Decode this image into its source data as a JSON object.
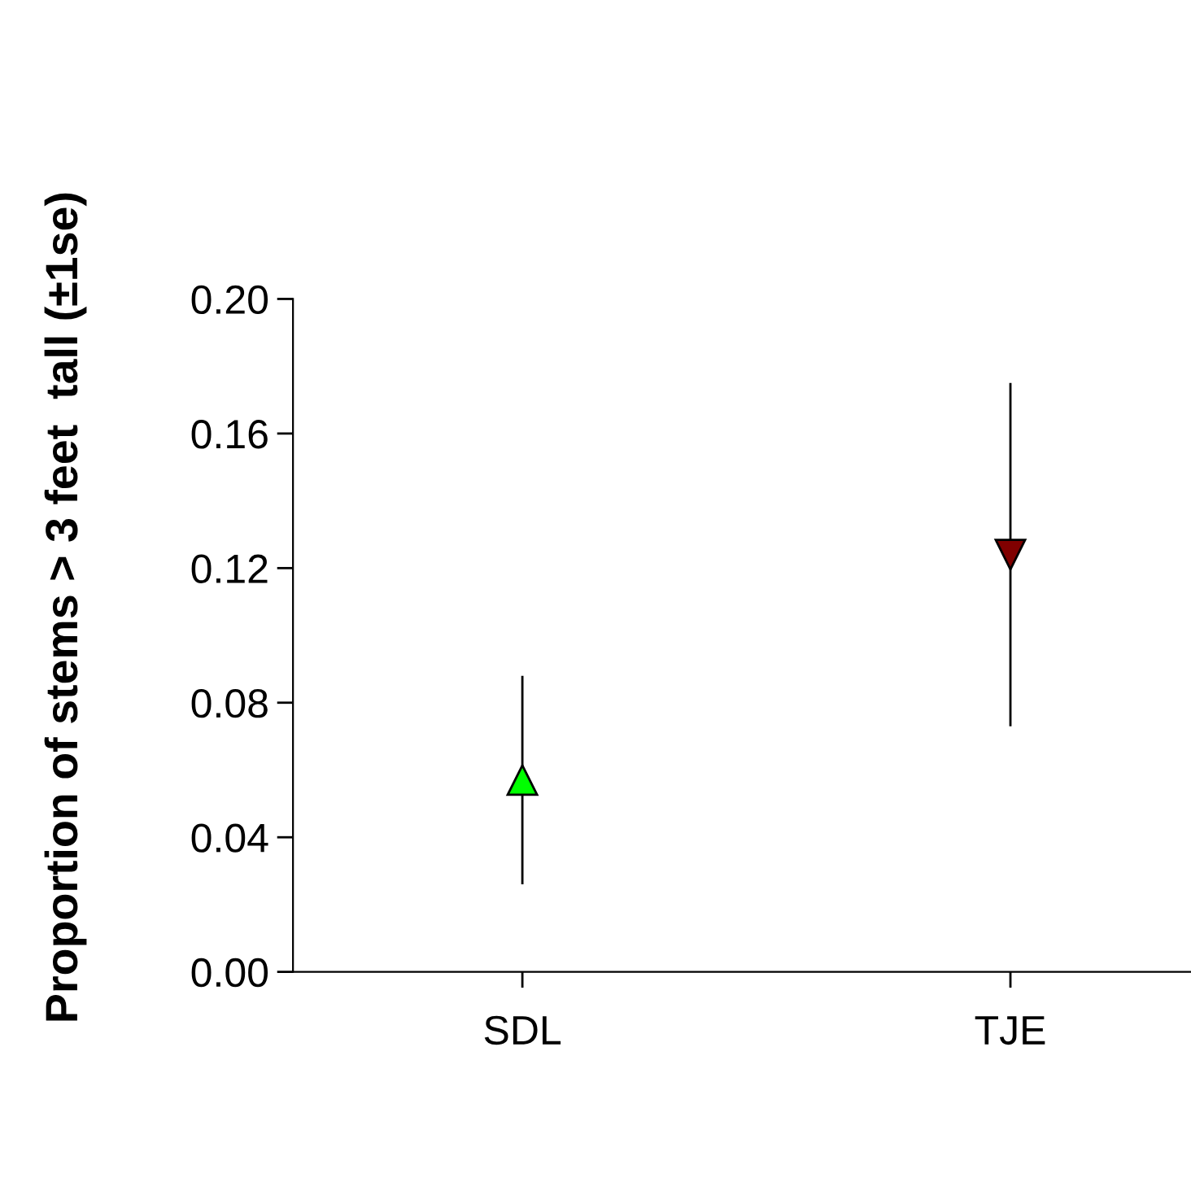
{
  "chart_data": {
    "type": "scatter",
    "ylabel": "Proportion of stems > 3 feet  tall (±1se)",
    "categories": [
      "SDL",
      "TJE"
    ],
    "series": [
      {
        "color": "#00ff00",
        "marker": "triangle",
        "values": [
          0.057,
          null
        ],
        "errors": [
          0.031,
          null
        ]
      },
      {
        "color": "#800000",
        "marker": "triangle_down",
        "values": [
          null,
          0.124
        ],
        "errors": [
          null,
          0.051
        ]
      }
    ],
    "ylim": [
      0,
      0.2
    ],
    "yticks": [
      {
        "value": 0,
        "label": "0.00"
      },
      {
        "value": 0.04,
        "label": "0.04"
      },
      {
        "value": 0.08,
        "label": "0.08"
      },
      {
        "value": 0.12,
        "label": "0.12"
      },
      {
        "value": 0.16,
        "label": "0.16"
      },
      {
        "value": 0.2,
        "label": "0.20"
      }
    ],
    "grid": false,
    "legend": false
  }
}
